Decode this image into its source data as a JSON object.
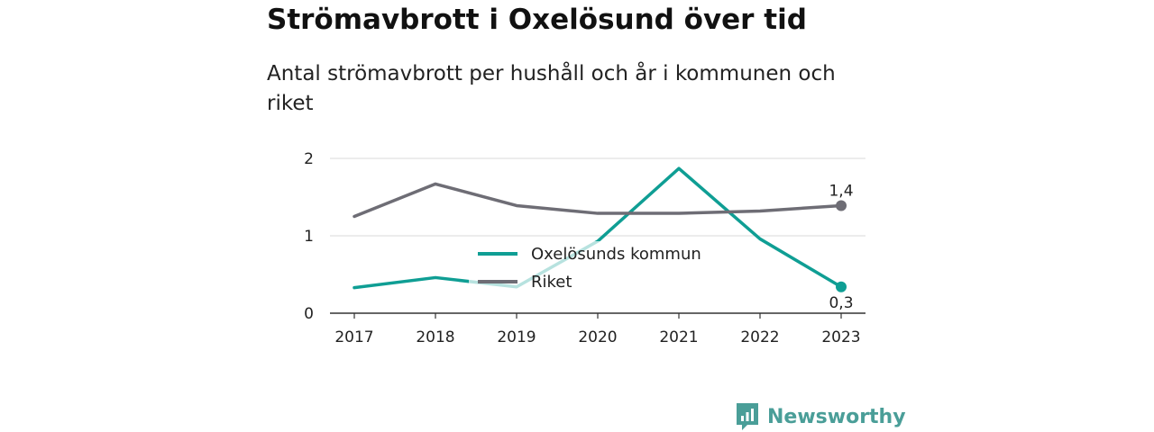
{
  "header": {
    "title": "Strömavbrott i Oxelösund över tid",
    "subtitle": "Antal strömavbrott per hushåll och år i kommunen och riket"
  },
  "chart_data": {
    "type": "line",
    "x": [
      "2017",
      "2018",
      "2019",
      "2020",
      "2021",
      "2022",
      "2023"
    ],
    "series": [
      {
        "name": "Oxelösunds kommun",
        "color": "#0f9e94",
        "values": [
          0.33,
          0.46,
          0.34,
          0.93,
          1.87,
          0.96,
          0.34
        ]
      },
      {
        "name": "Riket",
        "color": "#6e6d75",
        "values": [
          1.25,
          1.67,
          1.39,
          1.29,
          1.29,
          1.32,
          1.39
        ]
      }
    ],
    "ylim": [
      0,
      2
    ],
    "yticks": [
      "0",
      "1",
      "2"
    ],
    "end_labels": {
      "Oxelösunds kommun": "0,3",
      "Riket": "1,4"
    },
    "grid": true,
    "legend_position": "center"
  },
  "footer": {
    "brand": "Newsworthy",
    "brand_icon": "bar-chart-icon"
  }
}
